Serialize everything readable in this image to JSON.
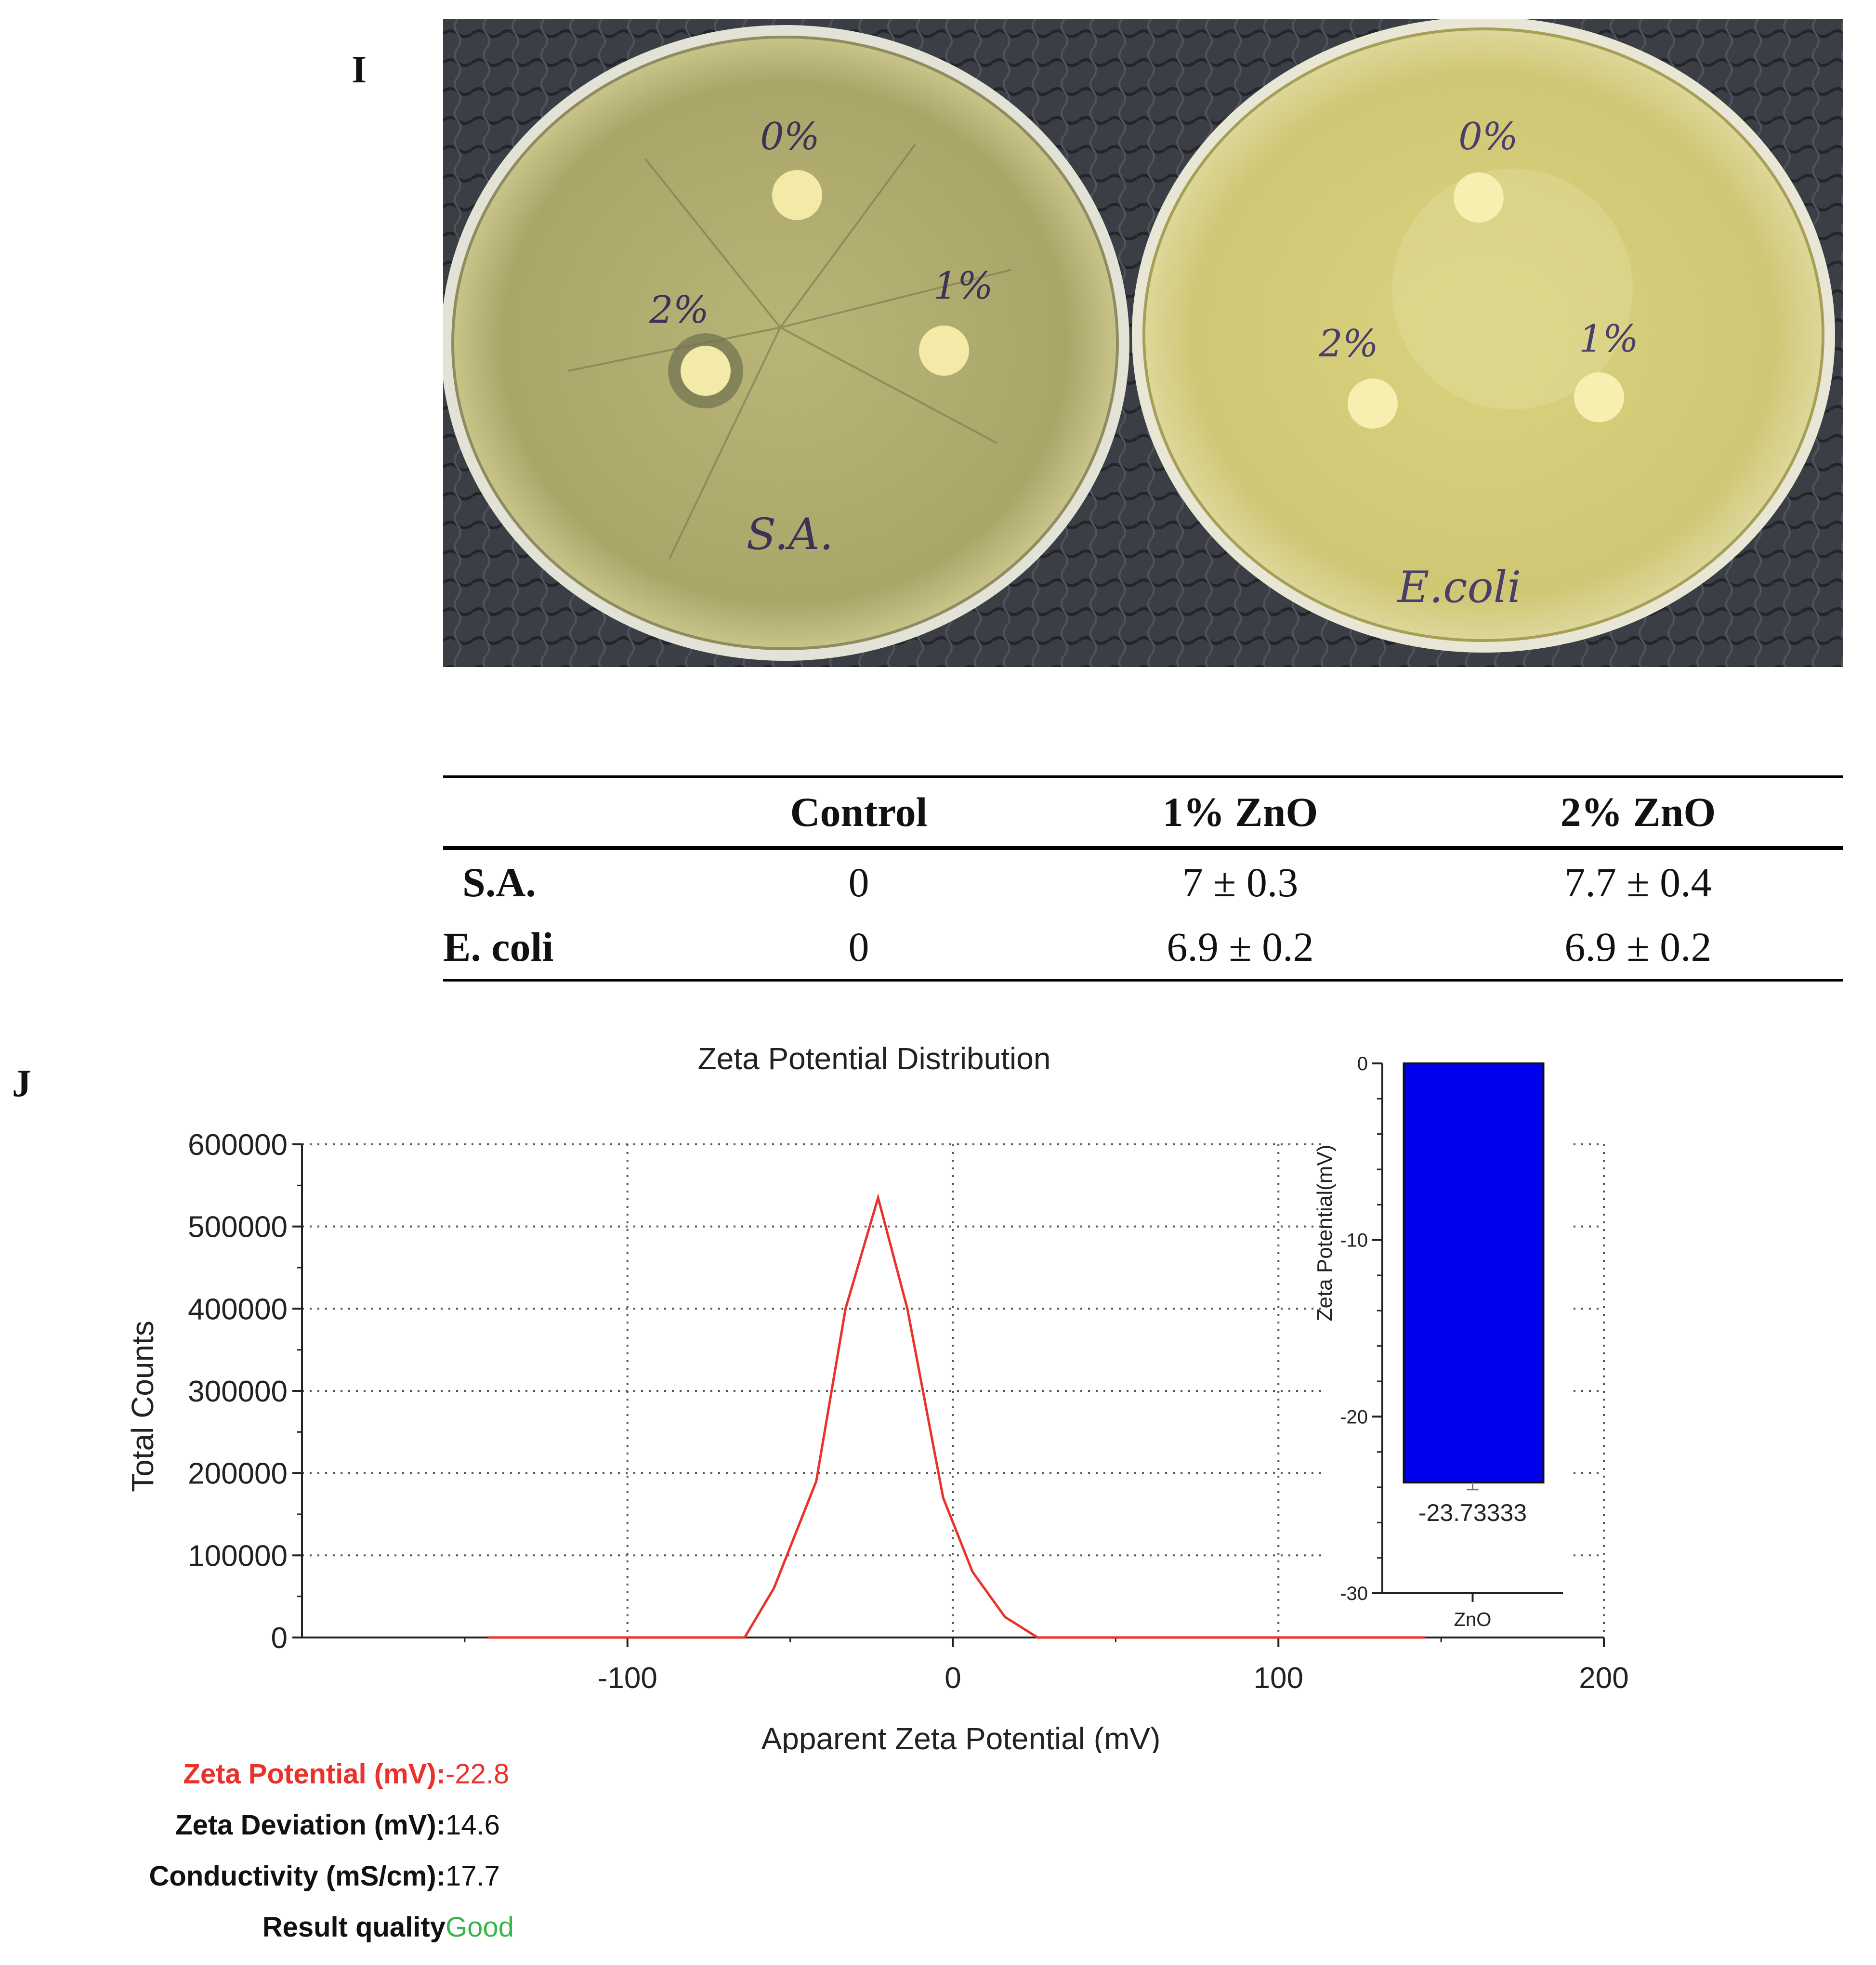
{
  "panels": {
    "i": "I",
    "j": "J"
  },
  "plates": [
    {
      "labels": [
        "0%",
        "1%",
        "2%"
      ],
      "organism_label": "S.A."
    },
    {
      "labels": [
        "0%",
        "1%",
        "2%"
      ],
      "organism_label": "E.coli"
    }
  ],
  "inhibition_table": {
    "columns": [
      "",
      "Control",
      "1% ZnO",
      "2% ZnO"
    ],
    "rows": [
      {
        "label": "S.A.",
        "values": [
          "0",
          "7 ± 0.3",
          "7.7 ± 0.4"
        ]
      },
      {
        "label": "E. coli",
        "values": [
          "0",
          "6.9 ± 0.2",
          "6.9 ± 0.2"
        ]
      }
    ]
  },
  "chart_data": [
    {
      "type": "line",
      "title": "Zeta Potential Distribution",
      "xlabel": "Apparent Zeta Potential (mV)",
      "ylabel": "Total Counts",
      "xlim": [
        -200,
        200
      ],
      "ylim": [
        0,
        600000
      ],
      "xticks": [
        "-100",
        "0",
        "100",
        "200"
      ],
      "yticks": [
        "0",
        "100000",
        "200000",
        "300000",
        "400000",
        "500000",
        "600000"
      ],
      "grid": true,
      "series": [
        {
          "color": "#e8322b",
          "x": [
            -143,
            -100,
            -64,
            -55,
            -42,
            -33,
            -23,
            -14,
            -3,
            6,
            16,
            26,
            60,
            100,
            145
          ],
          "y": [
            0,
            0,
            0,
            60000,
            190000,
            400000,
            535000,
            400000,
            170000,
            80000,
            25000,
            0,
            0,
            0,
            0
          ]
        }
      ]
    },
    {
      "type": "bar",
      "categories": [
        "ZnO"
      ],
      "values": [
        -23.73333
      ],
      "error": [
        0.4
      ],
      "data_labels": [
        "-23.73333"
      ],
      "ylabel": "Zeta Potential(mV)",
      "ylim": [
        -30,
        0
      ],
      "yticks": [
        "0",
        "-10",
        "-20",
        "-30"
      ],
      "bar_color": "#0000ee"
    }
  ],
  "results": [
    {
      "label": "Zeta Potential (mV):",
      "value": "-22.8",
      "color": "#e8322b"
    },
    {
      "label": "Zeta Deviation (mV):",
      "value": "14.6",
      "color": "#111111"
    },
    {
      "label": "Conductivity (mS/cm):",
      "value": "17.7",
      "color": "#111111"
    },
    {
      "label": "Result quality",
      "value": "Good",
      "color": "#3bb44a",
      "label_color": "#111111"
    }
  ]
}
